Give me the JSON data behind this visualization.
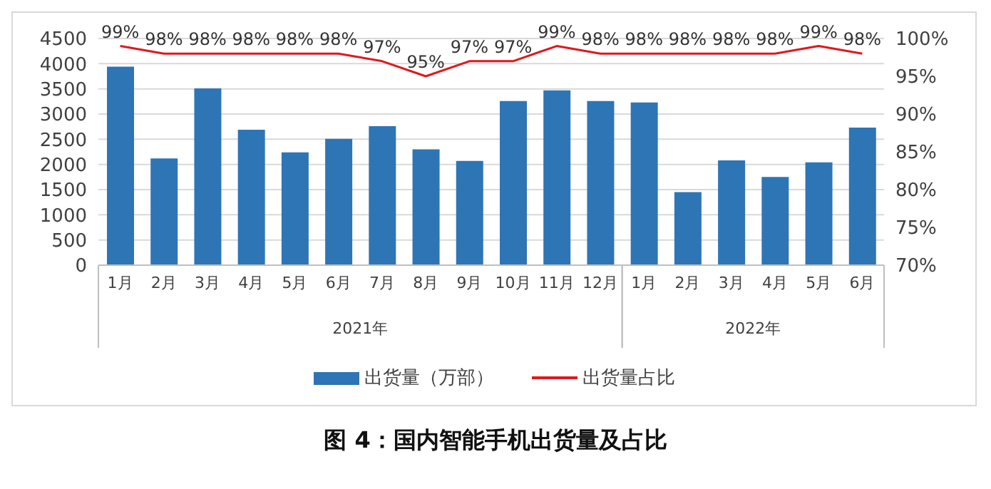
{
  "chart_data": {
    "type": "bar",
    "title": "图 4：国内智能手机出货量及占比",
    "categories": [
      "1月",
      "2月",
      "3月",
      "4月",
      "5月",
      "6月",
      "7月",
      "8月",
      "9月",
      "10月",
      "11月",
      "12月",
      "1月",
      "2月",
      "3月",
      "4月",
      "5月",
      "6月"
    ],
    "annotations": [
      "2021年",
      "2022年"
    ],
    "series": [
      {
        "name": "出货量（万部）",
        "color": "#2e75b6",
        "values": [
          3940,
          2120,
          3510,
          2690,
          2240,
          2510,
          2760,
          2300,
          2070,
          3260,
          3470,
          3260,
          3230,
          1450,
          2080,
          1750,
          2040,
          2730
        ]
      },
      {
        "name": "出货量占比",
        "type": "line",
        "axis": "y2",
        "color": "#e0181e",
        "values": [
          99,
          98,
          98,
          98,
          98,
          98,
          97,
          95,
          97,
          97,
          99,
          98,
          98,
          98,
          98,
          98,
          99,
          98
        ],
        "value_labels": [
          "99%",
          "98%",
          "98%",
          "98%",
          "98%",
          "98%",
          "97%",
          "95%",
          "97%",
          "97%",
          "99%",
          "98%",
          "98%",
          "98%",
          "98%",
          "98%",
          "99%",
          "98%"
        ]
      }
    ],
    "ylim": [
      0,
      4500
    ],
    "yticks": [
      0,
      500,
      1000,
      1500,
      2000,
      2500,
      3000,
      3500,
      4000,
      4500
    ],
    "y2lim": [
      70,
      100
    ],
    "y2ticks": [
      {
        "value": 70,
        "label": "70%"
      },
      {
        "value": 75,
        "label": "75%"
      },
      {
        "value": 80,
        "label": "80%"
      },
      {
        "value": 85,
        "label": "85%"
      },
      {
        "value": 90,
        "label": "90%"
      },
      {
        "value": 95,
        "label": "95%"
      },
      {
        "value": 100,
        "label": "100%"
      }
    ],
    "grid": "y",
    "legend": "bottom",
    "marker": "none"
  }
}
